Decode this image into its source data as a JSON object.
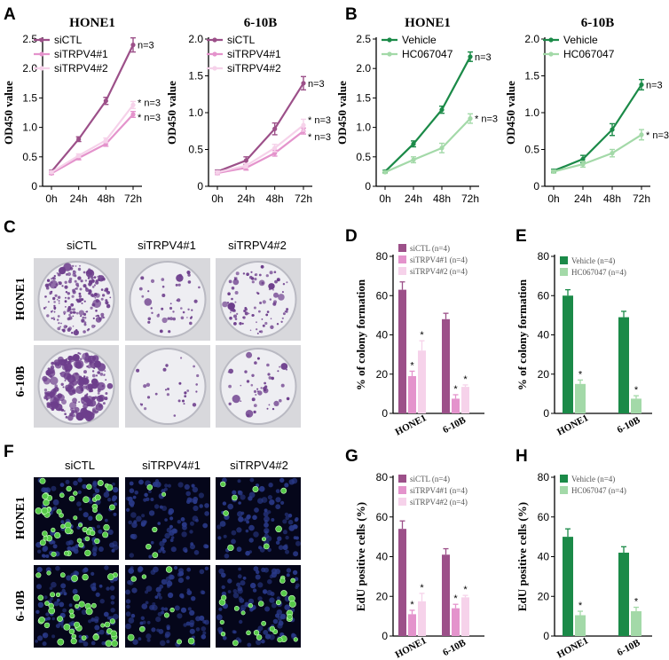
{
  "panel_letters": {
    "A": "A",
    "B": "B",
    "C": "C",
    "D": "D",
    "E": "E",
    "F": "F",
    "G": "G",
    "H": "H"
  },
  "colors": {
    "siCTL": "#9c5089",
    "siTRPV4_1": "#e493cc",
    "siTRPV4_2": "#f6d2ea",
    "Vehicle": "#1b8a48",
    "HC067047": "#a3d9a8",
    "crystal_violet": "#6d3e8c",
    "edu_green": "#57c94a",
    "dapi_blue": "#2a3a8a"
  },
  "panel_C": {
    "col_labels": [
      "siCTL",
      "siTRPV4#1",
      "siTRPV4#2"
    ],
    "row_labels": [
      "HONE1",
      "6-10B"
    ]
  },
  "panel_F": {
    "col_labels": [
      "siCTL",
      "siTRPV4#1",
      "siTRPV4#2"
    ],
    "row_labels": [
      "HONE1",
      "6-10B"
    ]
  },
  "chart_data": [
    {
      "id": "A1",
      "type": "line",
      "title": "HONE1",
      "ylabel": "OD450 value",
      "x": [
        "0h",
        "24h",
        "48h",
        "72h"
      ],
      "ylim": [
        0,
        2.5
      ],
      "yticks": [
        "0",
        "0.5",
        "1.0",
        "1.5",
        "2.0",
        "2.5"
      ],
      "series": [
        {
          "name": "siCTL",
          "color": "#9c5089",
          "values": [
            0.25,
            0.8,
            1.45,
            2.4
          ],
          "err": [
            0.02,
            0.04,
            0.06,
            0.12
          ],
          "annotation": "n=3"
        },
        {
          "name": "siTRPV4#1",
          "color": "#e493cc",
          "values": [
            0.22,
            0.48,
            0.72,
            1.22
          ],
          "err": [
            0.02,
            0.03,
            0.04,
            0.05
          ],
          "annotation": "* n=3"
        },
        {
          "name": "siTRPV4#2",
          "color": "#f6d2ea",
          "values": [
            0.24,
            0.52,
            0.78,
            1.38
          ],
          "err": [
            0.02,
            0.03,
            0.04,
            0.06
          ],
          "annotation": "* n=3"
        }
      ]
    },
    {
      "id": "A2",
      "type": "line",
      "title": "6-10B",
      "ylabel": "OD450 value",
      "x": [
        "0h",
        "24h",
        "48h",
        "72h"
      ],
      "ylim": [
        0,
        2.0
      ],
      "yticks": [
        "0",
        "0.5",
        "1.0",
        "1.5",
        "2.0"
      ],
      "series": [
        {
          "name": "siCTL",
          "color": "#9c5089",
          "values": [
            0.2,
            0.35,
            0.78,
            1.4
          ],
          "err": [
            0.02,
            0.05,
            0.08,
            0.09
          ],
          "annotation": "n=3"
        },
        {
          "name": "siTRPV4#1",
          "color": "#e493cc",
          "values": [
            0.18,
            0.25,
            0.45,
            0.75
          ],
          "err": [
            0.02,
            0.03,
            0.04,
            0.04
          ],
          "annotation": "* n=3"
        },
        {
          "name": "siTRPV4#2",
          "color": "#f6d2ea",
          "values": [
            0.19,
            0.28,
            0.52,
            0.83
          ],
          "err": [
            0.02,
            0.03,
            0.05,
            0.08
          ],
          "annotation": "* n=3"
        }
      ]
    },
    {
      "id": "B1",
      "type": "line",
      "title": "HONE1",
      "ylabel": "OD450 value",
      "x": [
        "0h",
        "24h",
        "48h",
        "72h"
      ],
      "ylim": [
        0,
        2.5
      ],
      "yticks": [
        "0",
        "0.5",
        "1.0",
        "1.5",
        "2.0",
        "2.5"
      ],
      "series": [
        {
          "name": "Vehicle",
          "color": "#1b8a48",
          "values": [
            0.25,
            0.72,
            1.3,
            2.2
          ],
          "err": [
            0.02,
            0.05,
            0.06,
            0.08
          ],
          "annotation": "n=3"
        },
        {
          "name": "HC067047",
          "color": "#a3d9a8",
          "values": [
            0.24,
            0.45,
            0.65,
            1.15
          ],
          "err": [
            0.02,
            0.05,
            0.08,
            0.08
          ],
          "annotation": "* n=3"
        }
      ]
    },
    {
      "id": "B2",
      "type": "line",
      "title": "6-10B",
      "ylabel": "OD450 value",
      "x": [
        "0h",
        "24h",
        "48h",
        "72h"
      ],
      "ylim": [
        0,
        2.0
      ],
      "yticks": [
        "0",
        "0.5",
        "1.0",
        "1.5",
        "2.0"
      ],
      "series": [
        {
          "name": "Vehicle",
          "color": "#1b8a48",
          "values": [
            0.21,
            0.37,
            0.77,
            1.38
          ],
          "err": [
            0.02,
            0.05,
            0.08,
            0.07
          ],
          "annotation": "n=3"
        },
        {
          "name": "HC067047",
          "color": "#a3d9a8",
          "values": [
            0.2,
            0.3,
            0.45,
            0.7
          ],
          "err": [
            0.02,
            0.04,
            0.05,
            0.07
          ],
          "annotation": "* n=3"
        }
      ]
    },
    {
      "id": "D",
      "type": "bar",
      "ylabel": "% of colony formation",
      "categories": [
        "HONE1",
        "6-10B"
      ],
      "ylim": [
        0,
        80
      ],
      "yticks": [
        "0",
        "20",
        "40",
        "60",
        "80"
      ],
      "series": [
        {
          "name": "siCTL (n=4)",
          "color": "#9c5089",
          "values": [
            63,
            48
          ],
          "err": [
            4,
            3
          ],
          "star": [
            false,
            false
          ]
        },
        {
          "name": "siTRPV4#1 (n=4)",
          "color": "#e493cc",
          "values": [
            19,
            7.5
          ],
          "err": [
            2.5,
            2
          ],
          "star": [
            true,
            true
          ]
        },
        {
          "name": "siTRPV4#2 (n=4)",
          "color": "#f6d2ea",
          "values": [
            32,
            13.5
          ],
          "err": [
            5,
            1
          ],
          "star": [
            true,
            true
          ]
        }
      ]
    },
    {
      "id": "E",
      "type": "bar",
      "ylabel": "% of colony formation",
      "categories": [
        "HONE1",
        "6-10B"
      ],
      "ylim": [
        0,
        80
      ],
      "yticks": [
        "0",
        "20",
        "40",
        "60",
        "80"
      ],
      "series": [
        {
          "name": "Vehicle (n=4)",
          "color": "#1b8a48",
          "values": [
            60,
            49
          ],
          "err": [
            3,
            3
          ],
          "star": [
            false,
            false
          ]
        },
        {
          "name": "HC067047 (n=4)",
          "color": "#a3d9a8",
          "values": [
            15,
            7.5
          ],
          "err": [
            2,
            1.5
          ],
          "star": [
            true,
            true
          ]
        }
      ]
    },
    {
      "id": "G",
      "type": "bar",
      "ylabel": "EdU positive cells (%)",
      "categories": [
        "HONE1",
        "6-10B"
      ],
      "ylim": [
        0,
        80
      ],
      "yticks": [
        "0",
        "20",
        "40",
        "60",
        "80"
      ],
      "series": [
        {
          "name": "siCTL (n=4)",
          "color": "#9c5089",
          "values": [
            54,
            41
          ],
          "err": [
            4,
            3
          ],
          "star": [
            false,
            false
          ]
        },
        {
          "name": "siTRPV4#1 (n=4)",
          "color": "#e493cc",
          "values": [
            11,
            14
          ],
          "err": [
            2,
            2
          ],
          "star": [
            true,
            true
          ]
        },
        {
          "name": "siTRPV4#2 (n=4)",
          "color": "#f6d2ea",
          "values": [
            17.5,
            19.5
          ],
          "err": [
            4,
            1
          ],
          "star": [
            true,
            true
          ]
        }
      ]
    },
    {
      "id": "H",
      "type": "bar",
      "ylabel": "EdU positive cells (%)",
      "categories": [
        "HONE1",
        "6-10B"
      ],
      "ylim": [
        0,
        80
      ],
      "yticks": [
        "0",
        "20",
        "40",
        "60",
        "80"
      ],
      "series": [
        {
          "name": "Vehicle (n=4)",
          "color": "#1b8a48",
          "values": [
            50,
            42
          ],
          "err": [
            4,
            3
          ],
          "star": [
            false,
            false
          ]
        },
        {
          "name": "HC067047 (n=4)",
          "color": "#a3d9a8",
          "values": [
            10.5,
            12.5
          ],
          "err": [
            2,
            2
          ],
          "star": [
            true,
            true
          ]
        }
      ]
    }
  ]
}
